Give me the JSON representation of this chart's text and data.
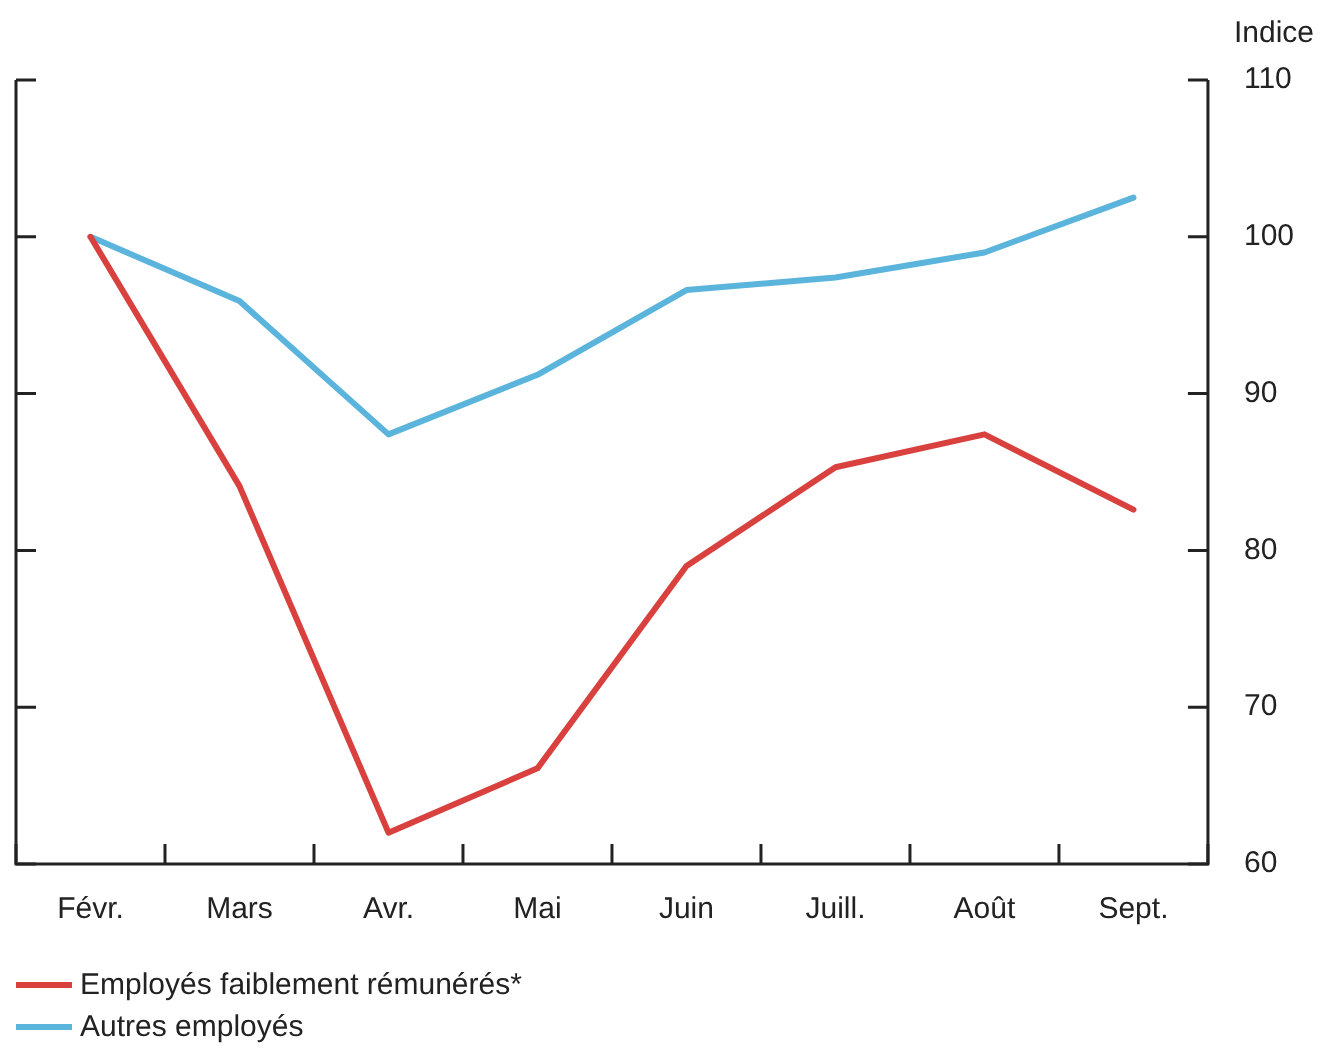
{
  "chart_data": {
    "type": "line",
    "ylabel": "Indice",
    "categories": [
      "Févr.",
      "Mars",
      "Avr.",
      "Mai",
      "Juin",
      "Juill.",
      "Août",
      "Sept."
    ],
    "series": [
      {
        "name": "Employés faiblement rémunérés*",
        "color": "#d9413f",
        "values": [
          100,
          84.1,
          62,
          66.1,
          79,
          85.3,
          87.4,
          82.6
        ]
      },
      {
        "name": "Autres employés",
        "color": "#5ab4dc",
        "values": [
          100,
          95.9,
          87.4,
          91.2,
          96.6,
          97.4,
          99,
          102.5
        ]
      }
    ],
    "ylim": [
      60,
      110
    ],
    "yticks": [
      60,
      70,
      80,
      90,
      100,
      110
    ],
    "grid": false,
    "legend": "bottom",
    "marker": "none",
    "line_style": "solid"
  }
}
